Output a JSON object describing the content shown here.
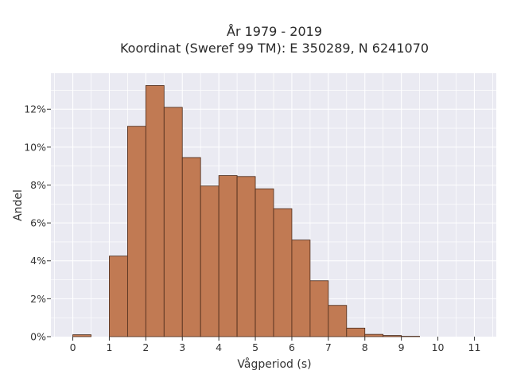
{
  "chart_data": {
    "type": "bar",
    "title": "År 1979 - 2019",
    "subtitle": "Koordinat (Sweref 99 TM): E 350289, N 6241070",
    "xlabel": "Vågperiod (s)",
    "ylabel": "Andel",
    "bin_width": 0.5,
    "bin_starts": [
      0,
      0.5,
      1,
      1.5,
      2,
      2.5,
      3,
      3.5,
      4,
      4.5,
      5,
      5.5,
      6,
      6.5,
      7,
      7.5,
      8,
      8.5,
      9,
      9.5,
      10,
      10.5,
      11
    ],
    "values": [
      0.1,
      0,
      4.25,
      11.1,
      13.25,
      12.1,
      9.45,
      7.95,
      8.5,
      8.45,
      7.8,
      6.75,
      5.1,
      2.95,
      1.65,
      0.45,
      0.12,
      0.06,
      0.02,
      0,
      0,
      0,
      0
    ],
    "xticks": [
      "0",
      "1",
      "2",
      "3",
      "4",
      "5",
      "6",
      "7",
      "8",
      "9",
      "10",
      "11"
    ],
    "xlim": [
      -0.6,
      11.6
    ],
    "yticks": [
      "0%",
      "2%",
      "4%",
      "6%",
      "8%",
      "10%",
      "12%"
    ],
    "ylim": [
      0,
      13.9
    ],
    "grid": true,
    "colors": {
      "bar": "#c17a53",
      "bar_edge": "#4a2a1a",
      "plot_bg": "#eaeaf2",
      "grid": "#ffffff"
    }
  }
}
